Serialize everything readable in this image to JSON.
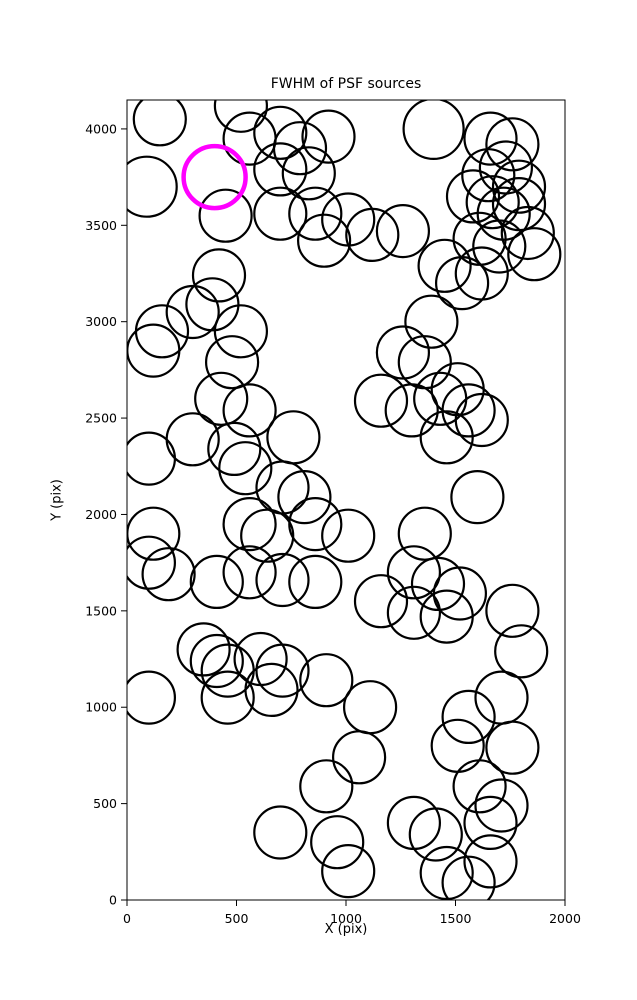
{
  "chart_data": {
    "type": "scatter",
    "title": "FWHM of PSF sources",
    "xlabel": "X (pix)",
    "ylabel": "Y (pix)",
    "xlim": [
      0,
      2000
    ],
    "ylim": [
      0,
      4150
    ],
    "xticks": [
      0,
      500,
      1000,
      1500,
      2000
    ],
    "yticks": [
      0,
      500,
      1000,
      1500,
      2000,
      2500,
      3000,
      3500,
      4000
    ],
    "grid": false,
    "legend": "none",
    "marker": "circle-outline",
    "marker_radius_px": 26,
    "series": [
      {
        "name": "psf-sources",
        "marker_name": "source-circle",
        "color": "#000000",
        "stroke_width": 2.2,
        "points": [
          [
            150,
            4050
          ],
          [
            520,
            4120
          ],
          [
            560,
            3950
          ],
          [
            700,
            3980
          ],
          [
            790,
            3900
          ],
          [
            920,
            3960
          ],
          [
            1400,
            4000,
            30
          ],
          [
            1660,
            3950
          ],
          [
            1760,
            3920
          ],
          [
            90,
            3700,
            30
          ],
          [
            700,
            3790
          ],
          [
            830,
            3770
          ],
          [
            1650,
            3760
          ],
          [
            1730,
            3800
          ],
          [
            1790,
            3700
          ],
          [
            450,
            3550
          ],
          [
            700,
            3560
          ],
          [
            860,
            3560
          ],
          [
            1010,
            3530
          ],
          [
            1580,
            3650
          ],
          [
            1670,
            3620
          ],
          [
            1720,
            3560
          ],
          [
            1790,
            3610
          ],
          [
            900,
            3420
          ],
          [
            1120,
            3450
          ],
          [
            1260,
            3470
          ],
          [
            1610,
            3430
          ],
          [
            1700,
            3390
          ],
          [
            1830,
            3460
          ],
          [
            1860,
            3350
          ],
          [
            420,
            3240
          ],
          [
            1450,
            3290
          ],
          [
            1530,
            3200
          ],
          [
            1620,
            3250
          ],
          [
            300,
            3050
          ],
          [
            390,
            3090
          ],
          [
            160,
            2950
          ],
          [
            520,
            2950
          ],
          [
            1390,
            3000
          ],
          [
            120,
            2850
          ],
          [
            480,
            2790
          ],
          [
            1260,
            2840
          ],
          [
            1360,
            2790
          ],
          [
            430,
            2600
          ],
          [
            560,
            2540
          ],
          [
            1160,
            2590
          ],
          [
            1300,
            2540
          ],
          [
            1430,
            2600
          ],
          [
            1510,
            2650
          ],
          [
            1560,
            2540
          ],
          [
            1620,
            2490
          ],
          [
            300,
            2390
          ],
          [
            490,
            2340
          ],
          [
            540,
            2240
          ],
          [
            760,
            2400
          ],
          [
            1460,
            2400
          ],
          [
            100,
            2290
          ],
          [
            710,
            2140
          ],
          [
            810,
            2090
          ],
          [
            1600,
            2090
          ],
          [
            120,
            1900
          ],
          [
            560,
            1950
          ],
          [
            640,
            1890
          ],
          [
            860,
            1950
          ],
          [
            1010,
            1890
          ],
          [
            1360,
            1900
          ],
          [
            100,
            1750
          ],
          [
            190,
            1690
          ],
          [
            410,
            1650
          ],
          [
            560,
            1700
          ],
          [
            710,
            1660
          ],
          [
            860,
            1650
          ],
          [
            1310,
            1700
          ],
          [
            1420,
            1640
          ],
          [
            1520,
            1590
          ],
          [
            1160,
            1550
          ],
          [
            1310,
            1490
          ],
          [
            1460,
            1470
          ],
          [
            1760,
            1500
          ],
          [
            350,
            1300
          ],
          [
            410,
            1240
          ],
          [
            460,
            1190
          ],
          [
            610,
            1250
          ],
          [
            710,
            1190
          ],
          [
            910,
            1140
          ],
          [
            1800,
            1290
          ],
          [
            100,
            1050
          ],
          [
            460,
            1050
          ],
          [
            660,
            1090
          ],
          [
            1110,
            1000
          ],
          [
            1560,
            950
          ],
          [
            1710,
            1050
          ],
          [
            1060,
            740
          ],
          [
            1510,
            800
          ],
          [
            1760,
            790
          ],
          [
            910,
            590
          ],
          [
            1610,
            590
          ],
          [
            1710,
            490
          ],
          [
            700,
            350
          ],
          [
            960,
            300
          ],
          [
            1310,
            400
          ],
          [
            1410,
            340
          ],
          [
            1660,
            400
          ],
          [
            1010,
            150
          ],
          [
            1460,
            140
          ],
          [
            1560,
            90
          ],
          [
            1660,
            200
          ]
        ]
      },
      {
        "name": "highlighted-source",
        "marker_name": "highlighted-source-circle",
        "color": "#FF00FF",
        "stroke_width": 4.5,
        "radius_px": 31,
        "points": [
          [
            400,
            3750
          ]
        ]
      }
    ]
  }
}
